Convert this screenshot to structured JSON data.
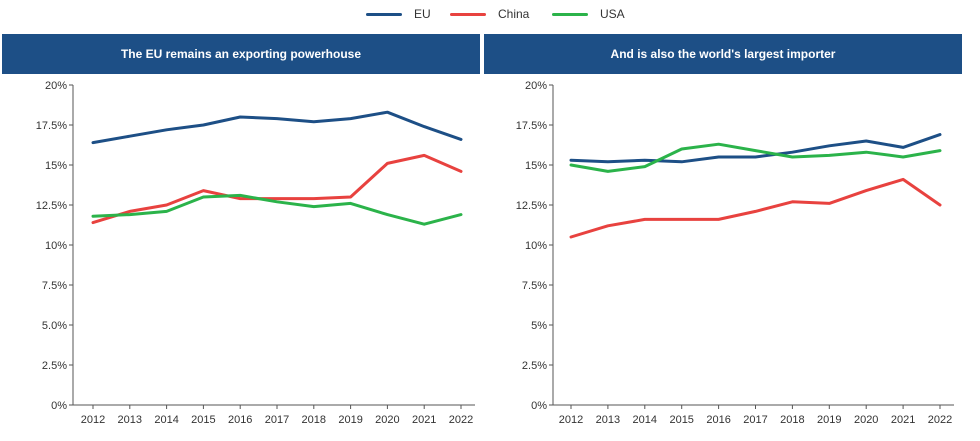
{
  "legend": {
    "items": [
      {
        "label": "EU",
        "color": "#1d4f86"
      },
      {
        "label": "China",
        "color": "#e8423f"
      },
      {
        "label": "USA",
        "color": "#2bb34a"
      }
    ]
  },
  "panels": {
    "left": {
      "title": "The EU remains an exporting powerhouse"
    },
    "right": {
      "title": "And is also the world's largest importer"
    }
  },
  "chart_data": [
    {
      "type": "line",
      "title": "The EU remains an exporting powerhouse",
      "x": [
        "2012",
        "2013",
        "2014",
        "2015",
        "2016",
        "2017",
        "2018",
        "2019",
        "2020",
        "2021",
        "2022"
      ],
      "ylim": [
        0,
        20
      ],
      "yticks": [
        0,
        2.5,
        5,
        7.5,
        10,
        12.5,
        15,
        17.5,
        20
      ],
      "ytick_labels": [
        "0%",
        "2.5%",
        "5.0%",
        "7.5%",
        "10%",
        "12.5%",
        "15%",
        "17.5%",
        "20%"
      ],
      "grid": false,
      "series": [
        {
          "name": "EU",
          "color": "#1d4f86",
          "values": [
            16.4,
            16.8,
            17.2,
            17.5,
            18.0,
            17.9,
            17.7,
            17.9,
            18.3,
            17.4,
            16.6
          ]
        },
        {
          "name": "China",
          "color": "#e8423f",
          "values": [
            11.4,
            12.1,
            12.5,
            13.4,
            12.9,
            12.9,
            12.9,
            13.0,
            15.1,
            15.6,
            14.6
          ]
        },
        {
          "name": "USA",
          "color": "#2bb34a",
          "values": [
            11.8,
            11.9,
            12.1,
            13.0,
            13.1,
            12.7,
            12.4,
            12.6,
            11.9,
            11.3,
            11.9
          ]
        }
      ]
    },
    {
      "type": "line",
      "title": "And is also the world's largest importer",
      "x": [
        "2012",
        "2013",
        "2014",
        "2015",
        "2016",
        "2017",
        "2018",
        "2019",
        "2020",
        "2021",
        "2022"
      ],
      "ylim": [
        0,
        20
      ],
      "yticks": [
        0,
        2.5,
        5,
        7.5,
        10,
        12.5,
        15,
        17.5,
        20
      ],
      "ytick_labels": [
        "0%",
        "2.5%",
        "5%",
        "7.5%",
        "10%",
        "12.5%",
        "15%",
        "17.5%",
        "20%"
      ],
      "grid": false,
      "series": [
        {
          "name": "EU",
          "color": "#1d4f86",
          "values": [
            15.3,
            15.2,
            15.3,
            15.2,
            15.5,
            15.5,
            15.8,
            16.2,
            16.5,
            16.1,
            16.9
          ]
        },
        {
          "name": "China",
          "color": "#e8423f",
          "values": [
            10.5,
            11.2,
            11.6,
            11.6,
            11.6,
            12.1,
            12.7,
            12.6,
            13.4,
            14.1,
            12.5
          ]
        },
        {
          "name": "USA",
          "color": "#2bb34a",
          "values": [
            15.0,
            14.6,
            14.9,
            16.0,
            16.3,
            15.9,
            15.5,
            15.6,
            15.8,
            15.5,
            15.9
          ]
        }
      ]
    }
  ]
}
